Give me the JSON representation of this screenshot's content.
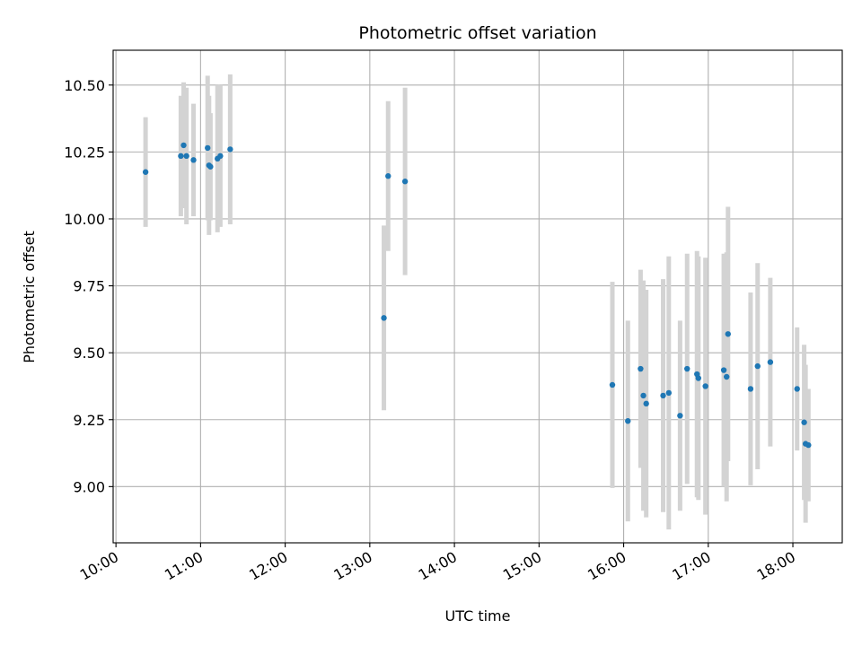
{
  "chart_data": {
    "type": "scatter",
    "title": "Photometric offset variation",
    "xlabel": "UTC time",
    "ylabel": "Photometric offset",
    "x_unit": "hours UTC",
    "xlim": [
      "09:58",
      "18:35"
    ],
    "ylim": [
      8.79,
      10.63
    ],
    "x_ticks": [
      "10:00",
      "11:00",
      "12:00",
      "13:00",
      "14:00",
      "15:00",
      "16:00",
      "17:00",
      "18:00"
    ],
    "y_ticks": [
      "9.00",
      "9.25",
      "9.50",
      "9.75",
      "10.00",
      "10.25",
      "10.50"
    ],
    "grid": true,
    "colors": {
      "point": "#1f77b4",
      "errorbar": "#d3d3d3",
      "grid": "#b0b0b0"
    },
    "series": [
      {
        "points": [
          {
            "x": "10:21",
            "y": 10.175,
            "err": 0.205
          },
          {
            "x": "10:46",
            "y": 10.235,
            "err": 0.225
          },
          {
            "x": "10:48",
            "y": 10.275,
            "err": 0.235
          },
          {
            "x": "10:50",
            "y": 10.235,
            "err": 0.255
          },
          {
            "x": "10:55",
            "y": 10.22,
            "err": 0.21
          },
          {
            "x": "11:05",
            "y": 10.265,
            "err": 0.27
          },
          {
            "x": "11:06",
            "y": 10.2,
            "err": 0.26
          },
          {
            "x": "11:07",
            "y": 10.195,
            "err": 0.2
          },
          {
            "x": "11:12",
            "y": 10.225,
            "err": 0.275
          },
          {
            "x": "11:14",
            "y": 10.235,
            "err": 0.265
          },
          {
            "x": "11:21",
            "y": 10.26,
            "err": 0.28
          },
          {
            "x": "13:10",
            "y": 9.63,
            "err": 0.345
          },
          {
            "x": "13:13",
            "y": 10.16,
            "err": 0.28
          },
          {
            "x": "13:25",
            "y": 10.14,
            "err": 0.35
          },
          {
            "x": "15:52",
            "y": 9.38,
            "err": 0.385
          },
          {
            "x": "16:03",
            "y": 9.245,
            "err": 0.375
          },
          {
            "x": "16:12",
            "y": 9.44,
            "err": 0.37
          },
          {
            "x": "16:14",
            "y": 9.34,
            "err": 0.43
          },
          {
            "x": "16:16",
            "y": 9.31,
            "err": 0.425
          },
          {
            "x": "16:28",
            "y": 9.34,
            "err": 0.435
          },
          {
            "x": "16:32",
            "y": 9.35,
            "err": 0.51
          },
          {
            "x": "16:40",
            "y": 9.265,
            "err": 0.355
          },
          {
            "x": "16:45",
            "y": 9.44,
            "err": 0.43
          },
          {
            "x": "16:52",
            "y": 9.42,
            "err": 0.46
          },
          {
            "x": "16:53",
            "y": 9.405,
            "err": 0.455
          },
          {
            "x": "16:58",
            "y": 9.375,
            "err": 0.48
          },
          {
            "x": "17:11",
            "y": 9.435,
            "err": 0.435
          },
          {
            "x": "17:13",
            "y": 9.41,
            "err": 0.465
          },
          {
            "x": "17:14",
            "y": 9.57,
            "err": 0.475
          },
          {
            "x": "17:30",
            "y": 9.365,
            "err": 0.36
          },
          {
            "x": "17:35",
            "y": 9.45,
            "err": 0.385
          },
          {
            "x": "17:44",
            "y": 9.465,
            "err": 0.315
          },
          {
            "x": "18:03",
            "y": 9.365,
            "err": 0.23
          },
          {
            "x": "18:08",
            "y": 9.24,
            "err": 0.29
          },
          {
            "x": "18:09",
            "y": 9.16,
            "err": 0.295
          },
          {
            "x": "18:11",
            "y": 9.155,
            "err": 0.21
          }
        ]
      }
    ]
  }
}
